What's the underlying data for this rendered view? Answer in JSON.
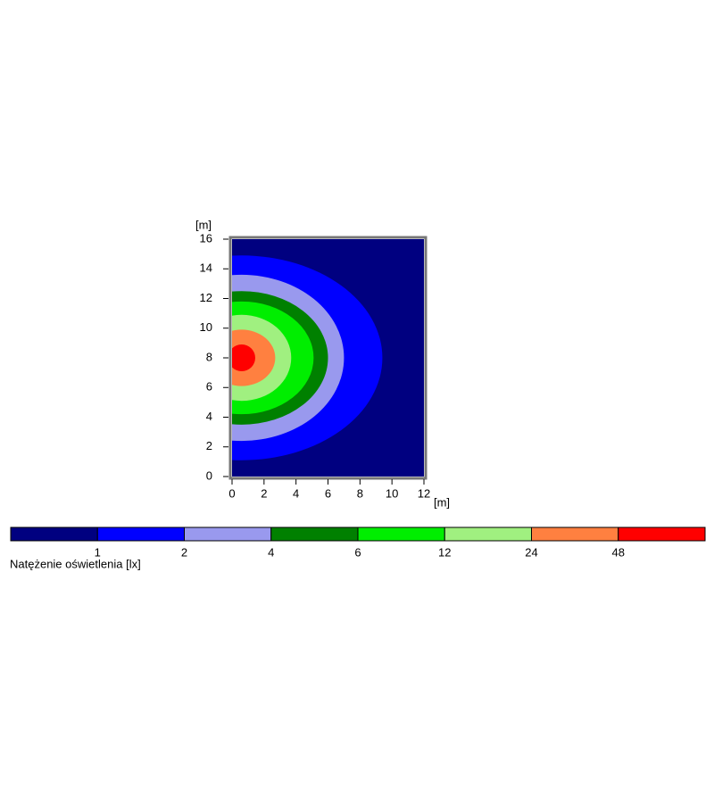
{
  "chart_data": {
    "type": "contour",
    "x_label": "[m]",
    "y_label": "[m]",
    "xlim": [
      0,
      12
    ],
    "ylim": [
      0,
      16
    ],
    "xticks": [
      0,
      2,
      4,
      6,
      8,
      10,
      12
    ],
    "yticks": [
      0,
      2,
      4,
      6,
      8,
      10,
      12,
      14,
      16
    ],
    "center": {
      "x": 0.6,
      "y": 8
    },
    "levels": [
      1,
      2,
      4,
      6,
      12,
      24,
      48
    ],
    "colors": [
      "#000080",
      "#0000ff",
      "#9999ee",
      "#008000",
      "#00ee00",
      "#a0f080",
      "#ff8040",
      "#ff0000"
    ],
    "contours": [
      {
        "rx": 8.8,
        "ry": 6.9
      },
      {
        "rx": 6.4,
        "ry": 5.6
      },
      {
        "rx": 5.4,
        "ry": 4.5
      },
      {
        "rx": 4.5,
        "ry": 3.8
      },
      {
        "rx": 3.1,
        "ry": 2.9
      },
      {
        "rx": 2.1,
        "ry": 1.9
      },
      {
        "rx": 0.85,
        "ry": 0.9
      }
    ],
    "colorbar_label": "Natężenie oświetlenia [lx]"
  }
}
